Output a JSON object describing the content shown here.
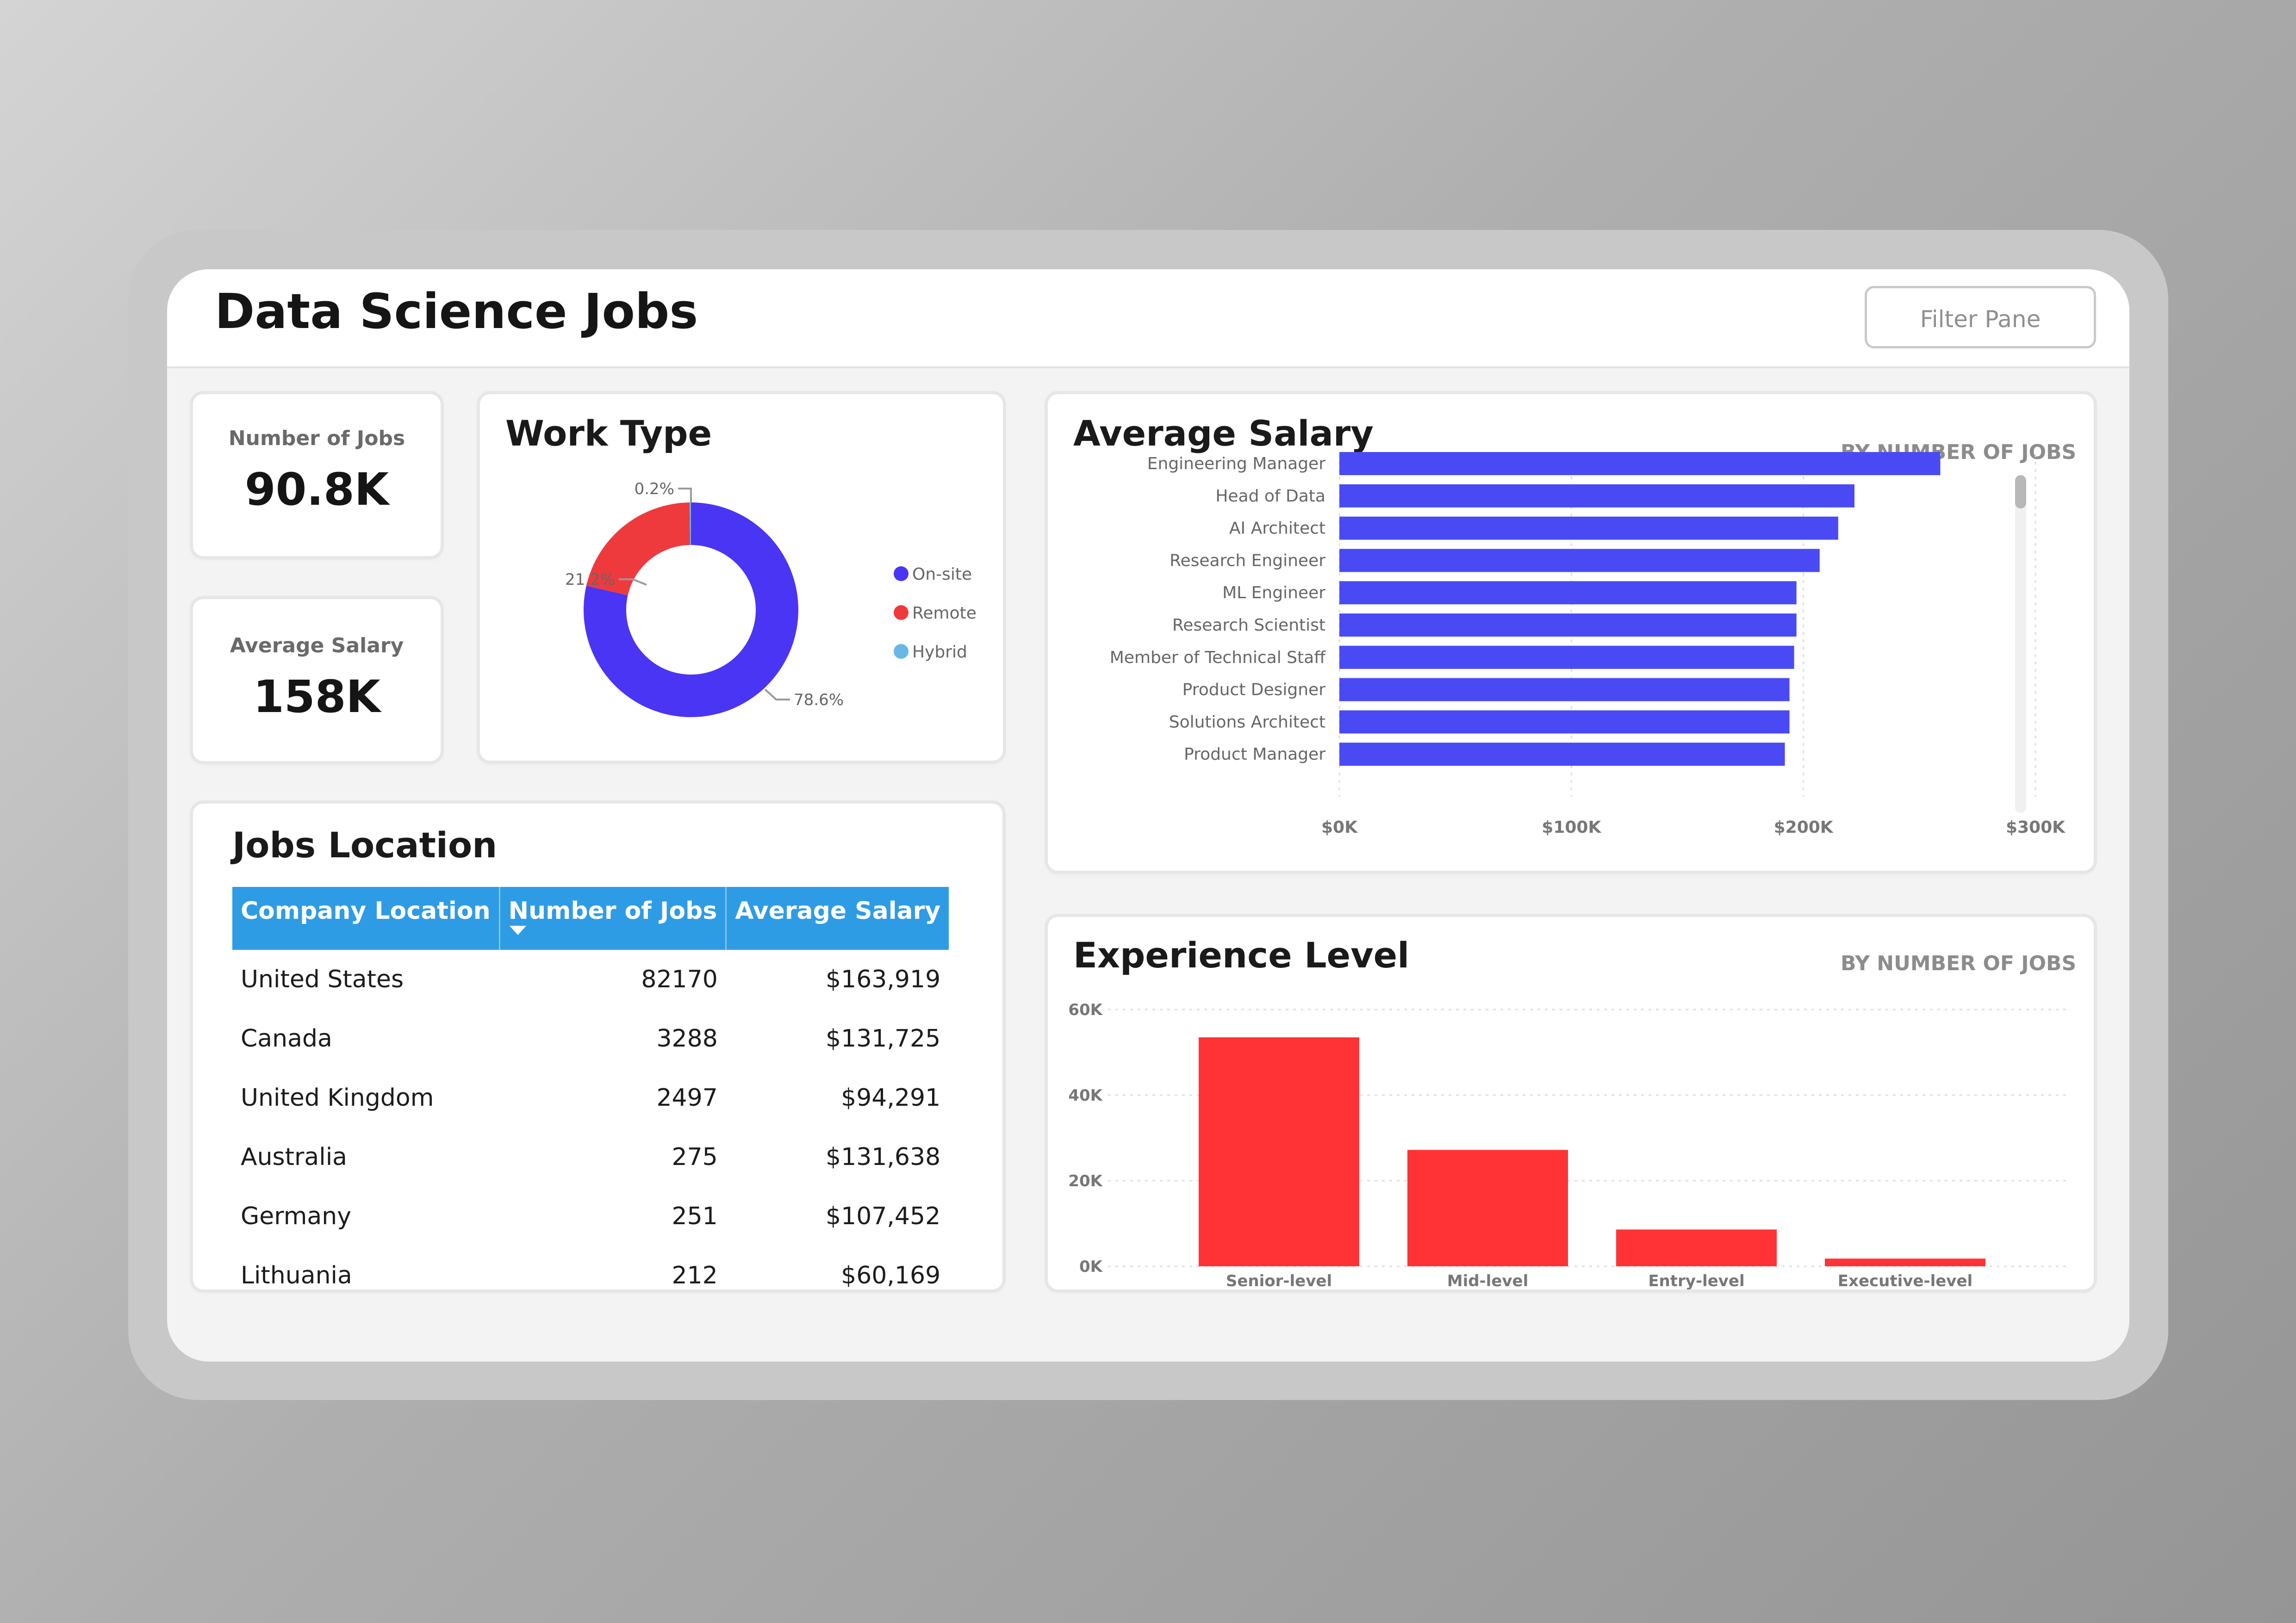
{
  "app": {
    "title": "Data Science Jobs",
    "filter_button_label": "Filter Pane"
  },
  "kpis": [
    {
      "label": "Number of Jobs",
      "value": "90.8K"
    },
    {
      "label": "Average Salary",
      "value": "158K"
    }
  ],
  "work_type": {
    "title": "Work Type",
    "legend": [
      {
        "label": "On-site",
        "color": "#4a35f5"
      },
      {
        "label": "Remote",
        "color": "#ef3a3d"
      },
      {
        "label": "Hybrid",
        "color": "#67b8e6"
      }
    ],
    "labels": {
      "onsite": "78.6%",
      "remote": "21.2%",
      "hybrid": "0.2%"
    }
  },
  "jobs_location": {
    "title": "Jobs Location",
    "columns": [
      "Company Location",
      "Number of Jobs",
      "Average Salary"
    ],
    "rows": [
      {
        "location": "United States",
        "jobs": "82170",
        "salary": "$163,919"
      },
      {
        "location": "Canada",
        "jobs": "3288",
        "salary": "$131,725"
      },
      {
        "location": "United Kingdom",
        "jobs": "2497",
        "salary": "$94,291"
      },
      {
        "location": "Australia",
        "jobs": "275",
        "salary": "$131,638"
      },
      {
        "location": "Germany",
        "jobs": "251",
        "salary": "$107,452"
      },
      {
        "location": "Lithuania",
        "jobs": "212",
        "salary": "$60,169"
      }
    ]
  },
  "average_salary": {
    "title": "Average Salary",
    "subtitle": "BY NUMBER OF JOBS"
  },
  "experience_level": {
    "title": "Experience Level",
    "subtitle": "BY NUMBER OF JOBS"
  },
  "colors": {
    "salary_bar": "#4a4af5",
    "experience_bar": "#ff3336",
    "table_header": "#2e9ce5"
  },
  "chart_data": [
    {
      "type": "pie",
      "title": "Work Type",
      "categories": [
        "On-site",
        "Remote",
        "Hybrid"
      ],
      "values": [
        78.6,
        21.2,
        0.2
      ],
      "value_labels": [
        "78.6%",
        "21.2%",
        "0.2%"
      ],
      "colors": [
        "#4a35f5",
        "#ef3a3d",
        "#67b8e6"
      ],
      "legend": "right"
    },
    {
      "type": "bar",
      "orientation": "horizontal",
      "title": "Average Salary",
      "subtitle": "BY NUMBER OF JOBS",
      "categories": [
        "Engineering Manager",
        "Head of Data",
        "AI Architect",
        "Research Engineer",
        "ML Engineer",
        "Research Scientist",
        "Member of Technical Staff",
        "Product Designer",
        "Solutions Architect",
        "Product Manager"
      ],
      "values": [
        259000,
        222000,
        215000,
        207000,
        197000,
        197000,
        196000,
        194000,
        194000,
        192000
      ],
      "xlim": [
        0,
        300000
      ],
      "xticks": [
        "$0K",
        "$100K",
        "$200K",
        "$300K"
      ],
      "grid": true
    },
    {
      "type": "bar",
      "title": "Experience Level",
      "subtitle": "BY NUMBER OF JOBS",
      "categories": [
        "Senior-level",
        "Mid-level",
        "Entry-level",
        "Executive-level"
      ],
      "values": [
        53500,
        27200,
        8600,
        1800
      ],
      "ylim": [
        0,
        60000
      ],
      "yticks": [
        "0K",
        "20K",
        "40K",
        "60K"
      ],
      "grid": true
    }
  ]
}
